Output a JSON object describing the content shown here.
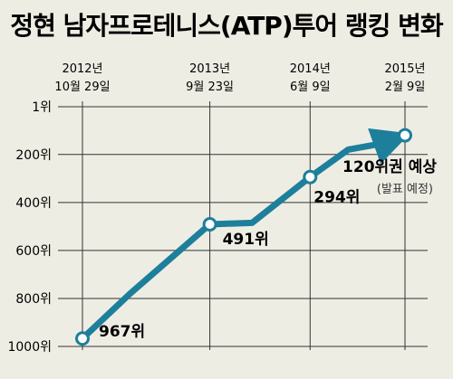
{
  "chart_data": {
    "type": "line",
    "title": "정현 남자프로테니스(ATP)투어 랭킹 변화",
    "y_ticks": [
      "1위",
      "200위",
      "400위",
      "600위",
      "800위",
      "1000위"
    ],
    "y_tick_values": [
      1,
      200,
      400,
      600,
      800,
      1000
    ],
    "ylim": [
      1,
      1000
    ],
    "y_inverted": true,
    "date_markers": [
      {
        "year": "2012년",
        "date": "10월 29일"
      },
      {
        "year": "2013년",
        "date": "9월 23일"
      },
      {
        "year": "2014년",
        "date": "6월 9일"
      },
      {
        "year": "2015년",
        "date": "2월 9일"
      }
    ],
    "series": [
      {
        "points": [
          {
            "x": "2012-10-29",
            "y": 967
          },
          {
            "x": "2013-03-01",
            "y": 780
          },
          {
            "x": "2013-09-23",
            "y": 491
          },
          {
            "x": "2014-01-10",
            "y": 485
          },
          {
            "x": "2014-06-09",
            "y": 294
          },
          {
            "x": "2014-09-15",
            "y": 180
          },
          {
            "x": "2014-12-10",
            "y": 155
          },
          {
            "x": "2015-02-09",
            "y": 120
          }
        ]
      }
    ],
    "point_labels": [
      {
        "text": "967위",
        "point": 0
      },
      {
        "text": "491위",
        "point": 2
      },
      {
        "text": "294위",
        "point": 4
      }
    ],
    "annotation": {
      "text": "120위권 예상",
      "sub": "(발표 예정)"
    },
    "colors": {
      "line": "#1d7f9c",
      "marker_fill": "#ffffff",
      "grid": "#333333",
      "background": "#eeede4"
    }
  }
}
